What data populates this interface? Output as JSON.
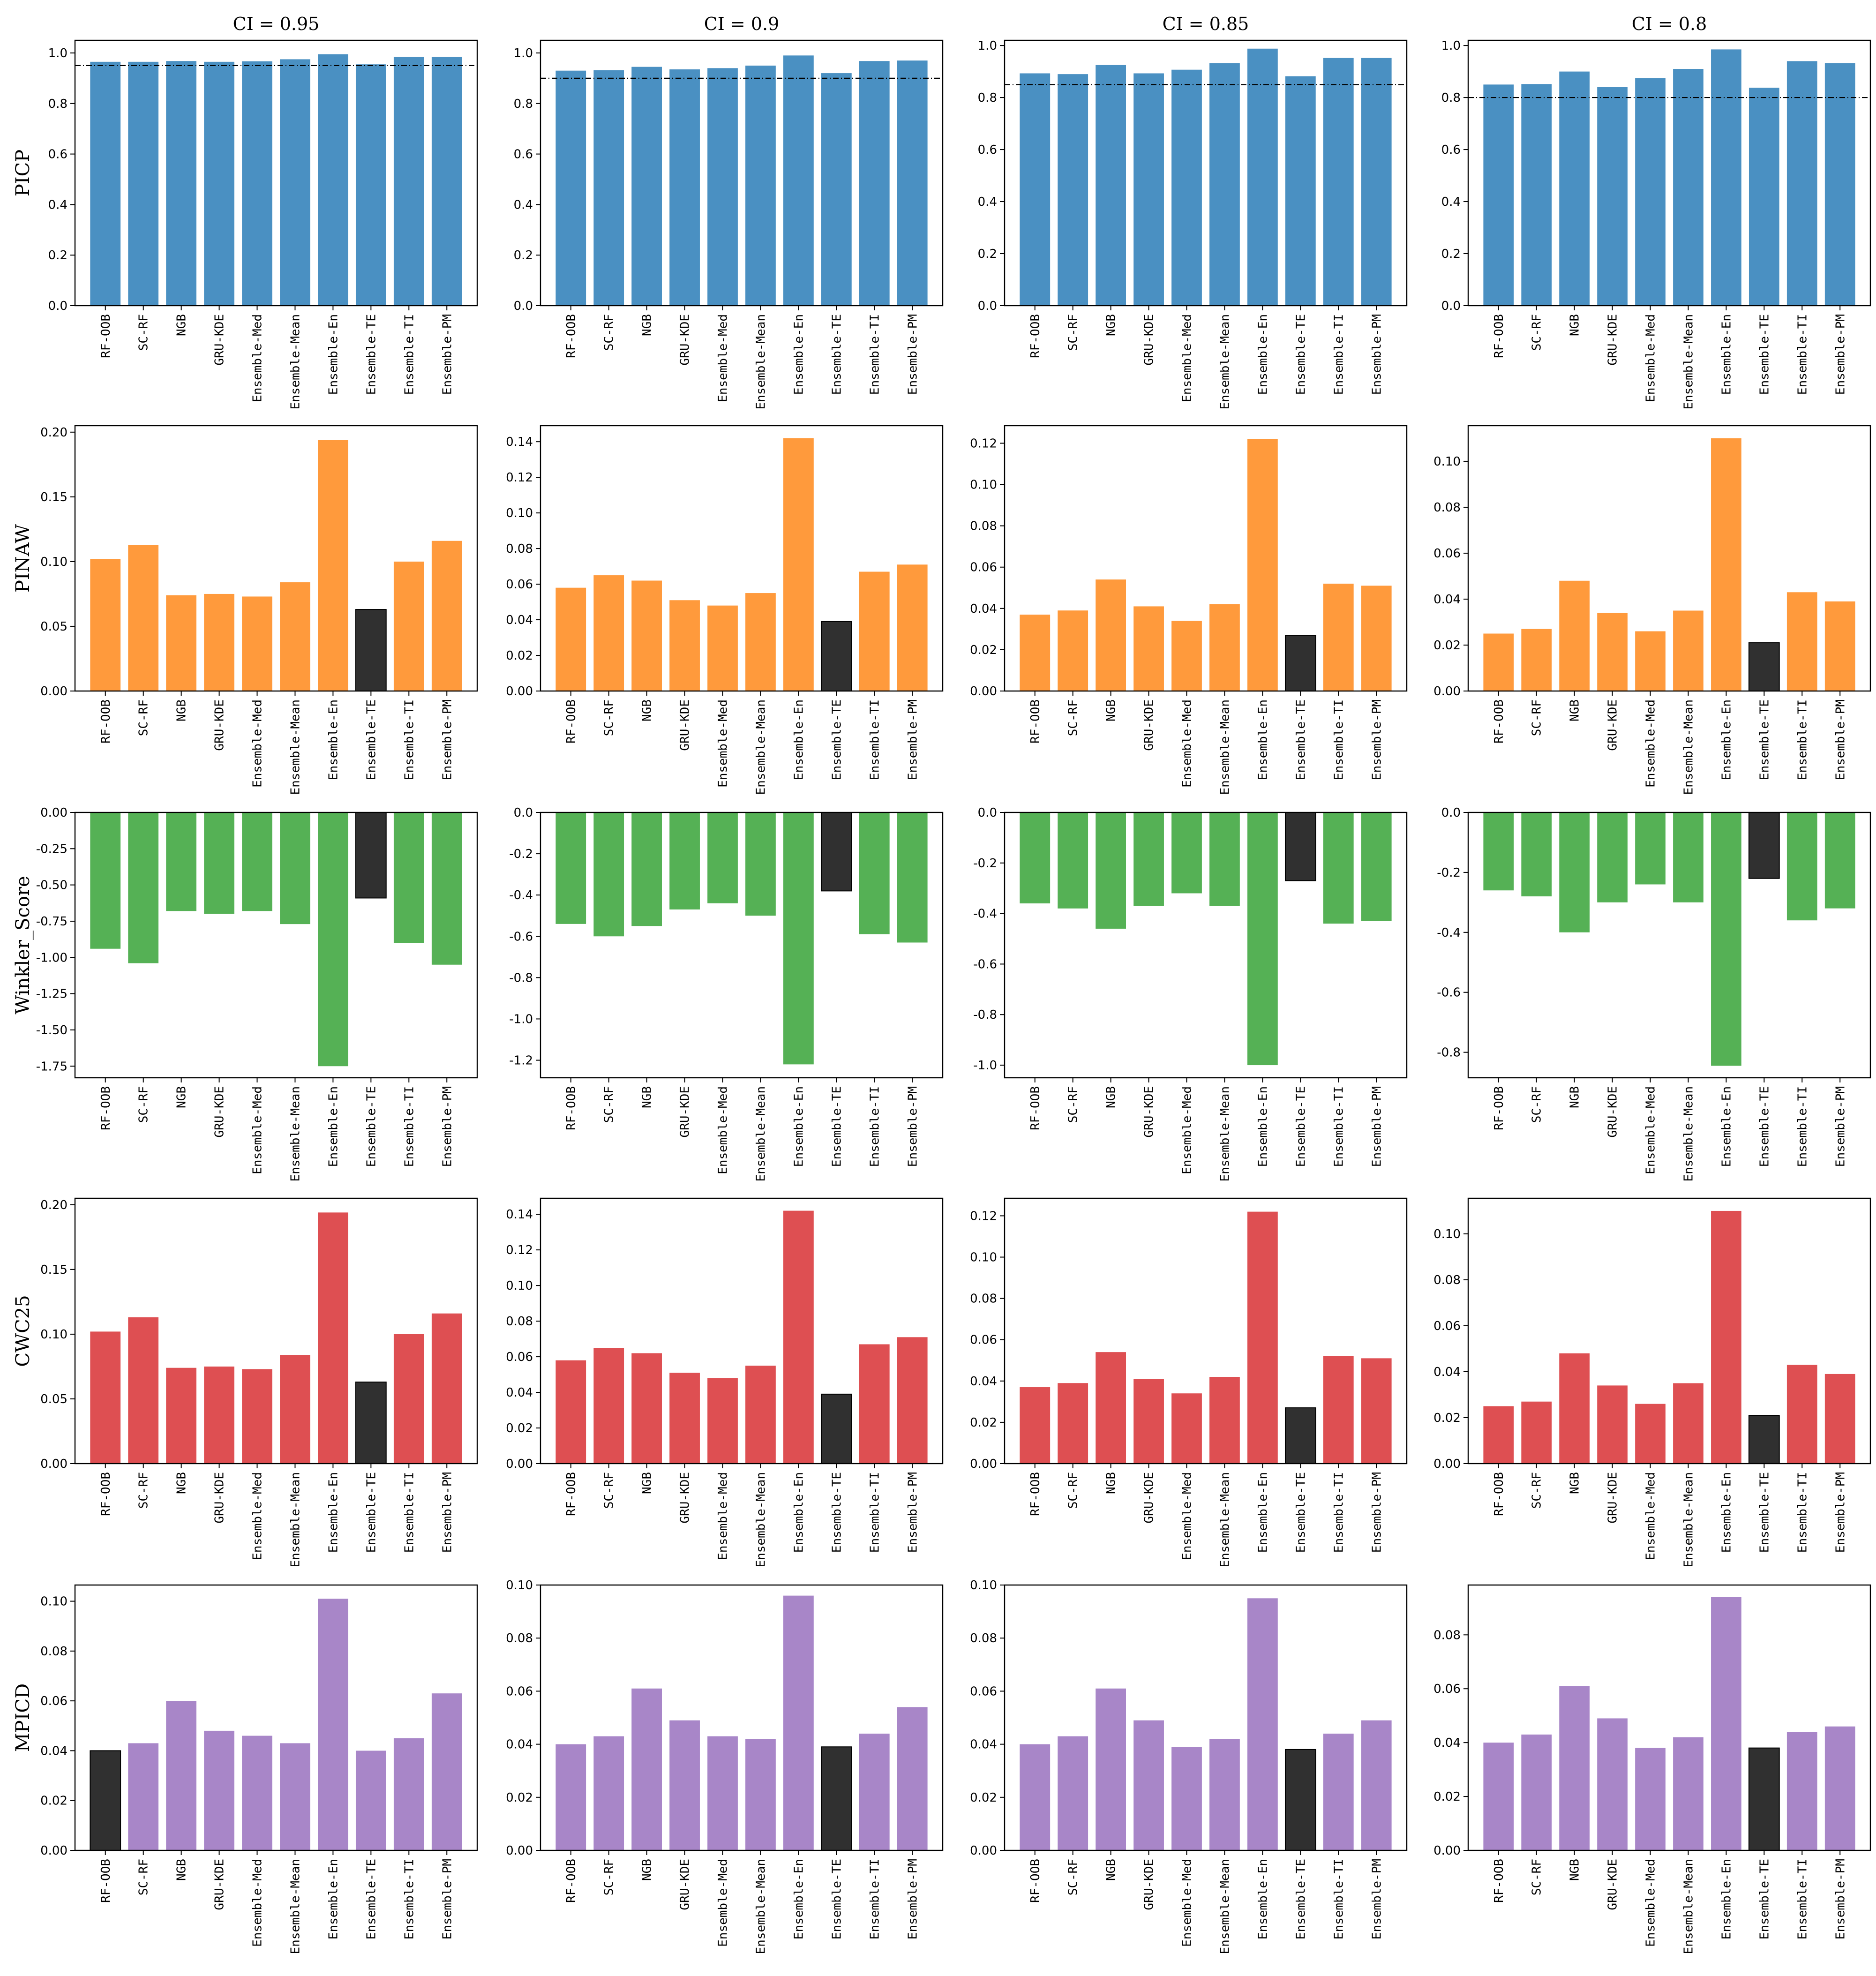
{
  "chart_data": {
    "type": "bar",
    "layout": "5x4 grid of bar charts",
    "categories": [
      "RF-OOB",
      "SC-RF",
      "NGB",
      "GRU-KDE",
      "Ensemble-Med",
      "Ensemble-Mean",
      "Ensemble-En",
      "Ensemble-TE",
      "Ensemble-TI",
      "Ensemble-PM"
    ],
    "columns": [
      {
        "title": "CI = 0.95",
        "ci": 0.95
      },
      {
        "title": "CI = 0.9",
        "ci": 0.9
      },
      {
        "title": "CI = 0.85",
        "ci": 0.85
      },
      {
        "title": "CI = 0.8",
        "ci": 0.8
      }
    ],
    "colors": {
      "PICP": "#4a90c2",
      "PINAW": "#ff9a3c",
      "Winkler_Score": "#55b155",
      "CWC25": "#de4f52",
      "MPICD": "#a886c8",
      "highlight": "#303030",
      "reference_line": "#000000"
    },
    "metrics": [
      {
        "name": "PICP",
        "reference_line_at_ci": true,
        "panels": [
          {
            "ylim": [
              0,
              1.05
            ],
            "ticks": [
              0.0,
              0.2,
              0.4,
              0.6,
              0.8,
              1.0
            ],
            "tick_labels": [
              "0.0",
              "0.2",
              "0.4",
              "0.6",
              "0.8",
              "1.0"
            ],
            "values": [
              0.965,
              0.965,
              0.968,
              0.965,
              0.967,
              0.975,
              0.995,
              0.955,
              0.985,
              0.985
            ],
            "highlight": null
          },
          {
            "ylim": [
              0,
              1.05
            ],
            "ticks": [
              0.0,
              0.2,
              0.4,
              0.6,
              0.8,
              1.0
            ],
            "tick_labels": [
              "0.0",
              "0.2",
              "0.4",
              "0.6",
              "0.8",
              "1.0"
            ],
            "values": [
              0.93,
              0.932,
              0.945,
              0.935,
              0.94,
              0.95,
              0.99,
              0.92,
              0.968,
              0.97
            ],
            "highlight": null
          },
          {
            "ylim": [
              0,
              1.02
            ],
            "ticks": [
              0.0,
              0.2,
              0.4,
              0.6,
              0.8,
              1.0
            ],
            "tick_labels": [
              "0.0",
              "0.2",
              "0.4",
              "0.6",
              "0.8",
              "1.0"
            ],
            "values": [
              0.893,
              0.89,
              0.925,
              0.893,
              0.907,
              0.932,
              0.988,
              0.882,
              0.952,
              0.952
            ],
            "highlight": null
          },
          {
            "ylim": [
              0,
              1.02
            ],
            "ticks": [
              0.0,
              0.2,
              0.4,
              0.6,
              0.8,
              1.0
            ],
            "tick_labels": [
              "0.0",
              "0.2",
              "0.4",
              "0.6",
              "0.8",
              "1.0"
            ],
            "values": [
              0.85,
              0.852,
              0.9,
              0.84,
              0.875,
              0.91,
              0.985,
              0.838,
              0.94,
              0.932
            ],
            "highlight": null
          }
        ]
      },
      {
        "name": "PINAW",
        "panels": [
          {
            "ylim": [
              0,
              0.205
            ],
            "ticks": [
              0.0,
              0.05,
              0.1,
              0.15,
              0.2
            ],
            "tick_labels": [
              "0.00",
              "0.05",
              "0.10",
              "0.15",
              "0.20"
            ],
            "values": [
              0.102,
              0.113,
              0.074,
              0.075,
              0.073,
              0.084,
              0.194,
              0.063,
              0.1,
              0.116
            ],
            "highlight": 7
          },
          {
            "ylim": [
              0,
              0.149
            ],
            "ticks": [
              0.0,
              0.02,
              0.04,
              0.06,
              0.08,
              0.1,
              0.12,
              0.14
            ],
            "tick_labels": [
              "0.00",
              "0.02",
              "0.04",
              "0.06",
              "0.08",
              "0.10",
              "0.12",
              "0.14"
            ],
            "values": [
              0.058,
              0.065,
              0.062,
              0.051,
              0.048,
              0.055,
              0.142,
              0.039,
              0.067,
              0.071
            ],
            "highlight": 7
          },
          {
            "ylim": [
              0,
              0.1285
            ],
            "ticks": [
              0.0,
              0.02,
              0.04,
              0.06,
              0.08,
              0.1,
              0.12
            ],
            "tick_labels": [
              "0.00",
              "0.02",
              "0.04",
              "0.06",
              "0.08",
              "0.10",
              "0.12"
            ],
            "values": [
              0.037,
              0.039,
              0.054,
              0.041,
              0.034,
              0.042,
              0.122,
              0.027,
              0.052,
              0.051
            ],
            "highlight": 7
          },
          {
            "ylim": [
              0,
              0.1155
            ],
            "ticks": [
              0.0,
              0.02,
              0.04,
              0.06,
              0.08,
              0.1
            ],
            "tick_labels": [
              "0.00",
              "0.02",
              "0.04",
              "0.06",
              "0.08",
              "0.10"
            ],
            "values": [
              0.025,
              0.027,
              0.048,
              0.034,
              0.026,
              0.035,
              0.11,
              0.021,
              0.043,
              0.039
            ],
            "highlight": 7
          }
        ]
      },
      {
        "name": "Winkler_Score",
        "panels": [
          {
            "ylim": [
              -1.83,
              0
            ],
            "ticks": [
              0.0,
              -0.25,
              -0.5,
              -0.75,
              -1.0,
              -1.25,
              -1.5,
              -1.75
            ],
            "tick_labels": [
              "0.00",
              "-0.25",
              "-0.50",
              "-0.75",
              "-1.00",
              "-1.25",
              "-1.50",
              "-1.75"
            ],
            "values": [
              -0.94,
              -1.04,
              -0.68,
              -0.7,
              -0.68,
              -0.77,
              -1.75,
              -0.59,
              -0.9,
              -1.05
            ],
            "highlight": 7
          },
          {
            "ylim": [
              -1.285,
              0
            ],
            "ticks": [
              0.0,
              -0.2,
              -0.4,
              -0.6,
              -0.8,
              -1.0,
              -1.2
            ],
            "tick_labels": [
              "0.0",
              "-0.2",
              "-0.4",
              "-0.6",
              "-0.8",
              "-1.0",
              "-1.2"
            ],
            "values": [
              -0.54,
              -0.6,
              -0.55,
              -0.47,
              -0.44,
              -0.5,
              -1.22,
              -0.38,
              -0.59,
              -0.63
            ],
            "highlight": 7
          },
          {
            "ylim": [
              -1.05,
              0
            ],
            "ticks": [
              0.0,
              -0.2,
              -0.4,
              -0.6,
              -0.8,
              -1.0
            ],
            "tick_labels": [
              "0.0",
              "-0.2",
              "-0.4",
              "-0.6",
              "-0.8",
              "-1.0"
            ],
            "values": [
              -0.36,
              -0.38,
              -0.46,
              -0.37,
              -0.32,
              -0.37,
              -1.0,
              -0.27,
              -0.44,
              -0.43
            ],
            "highlight": 7
          },
          {
            "ylim": [
              -0.885,
              0
            ],
            "ticks": [
              0.0,
              -0.2,
              -0.4,
              -0.6,
              -0.8
            ],
            "tick_labels": [
              "0.0",
              "-0.2",
              "-0.4",
              "-0.6",
              "-0.8"
            ],
            "values": [
              -0.26,
              -0.28,
              -0.4,
              -0.3,
              -0.24,
              -0.3,
              -0.845,
              -0.22,
              -0.36,
              -0.32
            ],
            "highlight": 7
          }
        ]
      },
      {
        "name": "CWC25",
        "panels": [
          {
            "ylim": [
              0,
              0.205
            ],
            "ticks": [
              0.0,
              0.05,
              0.1,
              0.15,
              0.2
            ],
            "tick_labels": [
              "0.00",
              "0.05",
              "0.10",
              "0.15",
              "0.20"
            ],
            "values": [
              0.102,
              0.113,
              0.074,
              0.075,
              0.073,
              0.084,
              0.194,
              0.063,
              0.1,
              0.116
            ],
            "highlight": 7
          },
          {
            "ylim": [
              0,
              0.149
            ],
            "ticks": [
              0.0,
              0.02,
              0.04,
              0.06,
              0.08,
              0.1,
              0.12,
              0.14
            ],
            "tick_labels": [
              "0.00",
              "0.02",
              "0.04",
              "0.06",
              "0.08",
              "0.10",
              "0.12",
              "0.14"
            ],
            "values": [
              0.058,
              0.065,
              0.062,
              0.051,
              0.048,
              0.055,
              0.142,
              0.039,
              0.067,
              0.071
            ],
            "highlight": 7
          },
          {
            "ylim": [
              0,
              0.1285
            ],
            "ticks": [
              0.0,
              0.02,
              0.04,
              0.06,
              0.08,
              0.1,
              0.12
            ],
            "tick_labels": [
              "0.00",
              "0.02",
              "0.04",
              "0.06",
              "0.08",
              "0.10",
              "0.12"
            ],
            "values": [
              0.037,
              0.039,
              0.054,
              0.041,
              0.034,
              0.042,
              0.122,
              0.027,
              0.052,
              0.051
            ],
            "highlight": 7
          },
          {
            "ylim": [
              0,
              0.1155
            ],
            "ticks": [
              0.0,
              0.02,
              0.04,
              0.06,
              0.08,
              0.1
            ],
            "tick_labels": [
              "0.00",
              "0.02",
              "0.04",
              "0.06",
              "0.08",
              "0.10"
            ],
            "values": [
              0.025,
              0.027,
              0.048,
              0.034,
              0.026,
              0.035,
              0.11,
              0.021,
              0.043,
              0.039
            ],
            "highlight": 7
          }
        ]
      },
      {
        "name": "MPICD",
        "panels": [
          {
            "ylim": [
              0,
              0.1065
            ],
            "ticks": [
              0.0,
              0.02,
              0.04,
              0.06,
              0.08,
              0.1
            ],
            "tick_labels": [
              "0.00",
              "0.02",
              "0.04",
              "0.06",
              "0.08",
              "0.10"
            ],
            "values": [
              0.04,
              0.043,
              0.06,
              0.048,
              0.046,
              0.043,
              0.101,
              0.04,
              0.045,
              0.063
            ],
            "highlight": 0
          },
          {
            "ylim": [
              0,
              0.1
            ],
            "ticks": [
              0.0,
              0.02,
              0.04,
              0.06,
              0.08,
              0.1
            ],
            "tick_labels": [
              "0.00",
              "0.02",
              "0.04",
              "0.06",
              "0.08",
              "0.10"
            ],
            "values": [
              0.04,
              0.043,
              0.061,
              0.049,
              0.043,
              0.042,
              0.096,
              0.039,
              0.044,
              0.054
            ],
            "highlight": 7
          },
          {
            "ylim": [
              0,
              0.1
            ],
            "ticks": [
              0.0,
              0.02,
              0.04,
              0.06,
              0.08,
              0.1
            ],
            "tick_labels": [
              "0.00",
              "0.02",
              "0.04",
              "0.06",
              "0.08",
              "0.10"
            ],
            "values": [
              0.04,
              0.043,
              0.061,
              0.049,
              0.039,
              0.042,
              0.095,
              0.038,
              0.044,
              0.049
            ],
            "highlight": 7
          },
          {
            "ylim": [
              0,
              0.0985
            ],
            "ticks": [
              0.0,
              0.02,
              0.04,
              0.06,
              0.08
            ],
            "tick_labels": [
              "0.00",
              "0.02",
              "0.04",
              "0.06",
              "0.08"
            ],
            "values": [
              0.04,
              0.043,
              0.061,
              0.049,
              0.038,
              0.042,
              0.094,
              0.038,
              0.044,
              0.046
            ],
            "highlight": 7
          }
        ]
      }
    ]
  }
}
